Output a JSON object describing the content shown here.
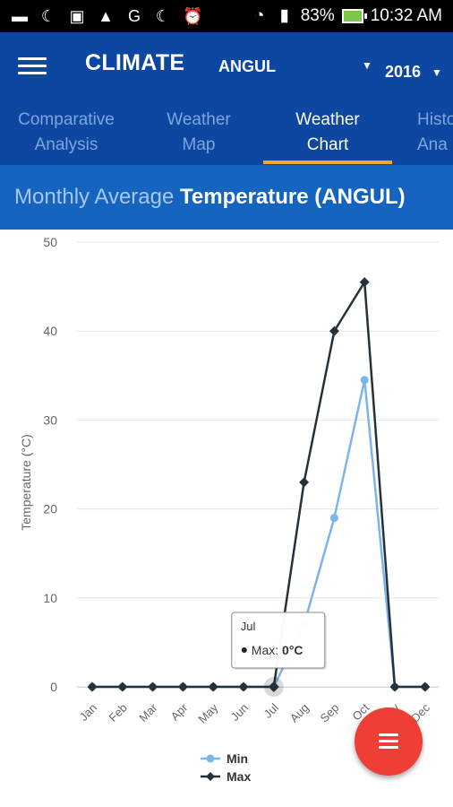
{
  "status_bar": {
    "icons": [
      "message-icon",
      "moon-icon",
      "image-icon",
      "broom-icon",
      "g-icon",
      "moon-icon",
      "alarm-icon",
      "wifi-icon",
      "signal-icon"
    ],
    "battery": "83%",
    "time": "10:32 AM"
  },
  "app_bar": {
    "title": "CLIMATE",
    "district": "ANGUL",
    "district_caret": "▼",
    "year": "2016",
    "year_caret": "▼"
  },
  "tabs": [
    {
      "line1": "Comparative",
      "line2": "Analysis",
      "active": false
    },
    {
      "line1": "Weather",
      "line2": "Map",
      "active": false
    },
    {
      "line1": "Weather",
      "line2": "Chart",
      "active": true
    },
    {
      "line1": "Histo",
      "line2": "Ana",
      "active": false
    }
  ],
  "banner": {
    "prefix": "Monthly Average",
    "suffix": "Temperature (ANGUL)"
  },
  "colors": {
    "app_bar": "#0d47a1",
    "banner": "#1565c0",
    "tab_indicator": "#f0a830",
    "min_series": "#7cb5ec",
    "max_series": "#263238",
    "fab": "#ef3e36"
  },
  "chart_data": {
    "type": "line",
    "title": "",
    "xlabel": "",
    "ylabel": "Temperature (°C)",
    "ylim": [
      0,
      50
    ],
    "yticks": [
      0,
      10,
      20,
      30,
      40,
      50
    ],
    "grid": true,
    "legend_placement": "bottom-center",
    "categories": [
      "Jan",
      "Feb",
      "Mar",
      "Apr",
      "May",
      "Jun",
      "Jul",
      "Aug",
      "Sep",
      "Oct",
      "Nov",
      "Dec"
    ],
    "series": [
      {
        "name": "Min",
        "values": [
          0,
          0,
          0,
          0,
          0,
          0,
          0,
          7,
          19,
          34.5,
          0,
          0
        ]
      },
      {
        "name": "Max",
        "values": [
          0,
          0,
          0,
          0,
          0,
          0,
          0,
          23,
          40,
          45.5,
          0,
          0
        ]
      }
    ],
    "tooltip": {
      "category": "Jul",
      "series": "Max",
      "label": "Max: ",
      "value": "0°C"
    }
  }
}
